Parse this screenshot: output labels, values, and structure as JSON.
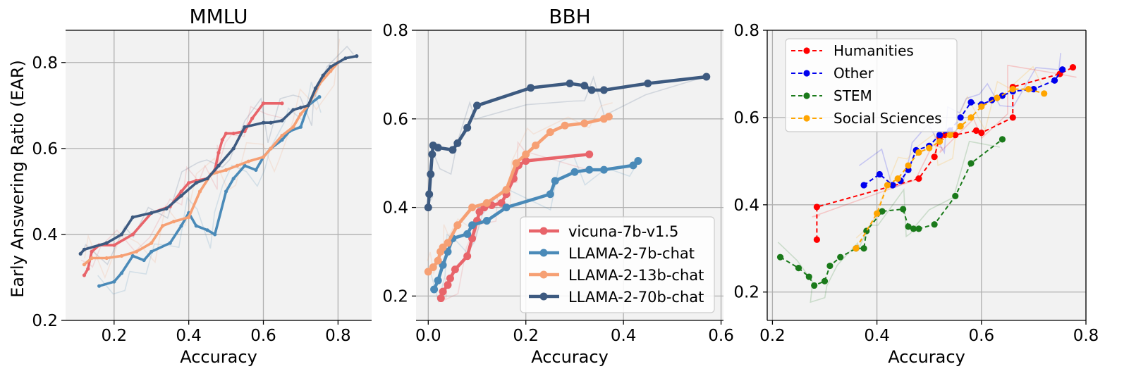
{
  "chart_data": [
    {
      "type": "line",
      "title": "MMLU",
      "xlabel": "Accuracy",
      "ylabel": "Early Answering Ratio (EAR)",
      "xlim": [
        0.07,
        0.89
      ],
      "ylim": [
        0.2,
        0.875
      ],
      "xticks": [
        0.2,
        0.4,
        0.6,
        0.8
      ],
      "xtick_labels": [
        "0.2",
        "0.4",
        "0.6",
        "0.8"
      ],
      "yticks": [
        0.2,
        0.4,
        0.6,
        0.8
      ],
      "ytick_labels": [
        "0.2",
        "0.4",
        "0.6",
        "0.8"
      ],
      "series": [
        {
          "name": "vicuna-7b-v1.5",
          "color": "#e8646a",
          "x": [
            0.12,
            0.13,
            0.14,
            0.16,
            0.2,
            0.25,
            0.3,
            0.35,
            0.38,
            0.4,
            0.42,
            0.45,
            0.47,
            0.48,
            0.49,
            0.5,
            0.52,
            0.55,
            0.57,
            0.6,
            0.65
          ],
          "y": [
            0.305,
            0.32,
            0.36,
            0.375,
            0.375,
            0.4,
            0.45,
            0.465,
            0.5,
            0.52,
            0.525,
            0.53,
            0.55,
            0.59,
            0.62,
            0.635,
            0.635,
            0.64,
            0.67,
            0.705,
            0.705
          ]
        },
        {
          "name": "LLAMA-2-7b-chat",
          "color": "#4a8ab8",
          "x": [
            0.16,
            0.2,
            0.22,
            0.25,
            0.28,
            0.3,
            0.35,
            0.38,
            0.4,
            0.42,
            0.45,
            0.47,
            0.5,
            0.52,
            0.55,
            0.58,
            0.6,
            0.62,
            0.65,
            0.67,
            0.7,
            0.72,
            0.75
          ],
          "y": [
            0.28,
            0.29,
            0.31,
            0.35,
            0.34,
            0.36,
            0.38,
            0.42,
            0.45,
            0.42,
            0.41,
            0.4,
            0.5,
            0.53,
            0.56,
            0.55,
            0.58,
            0.6,
            0.62,
            0.64,
            0.65,
            0.7,
            0.72
          ]
        },
        {
          "name": "LLAMA-2-13b-chat",
          "color": "#f6a074",
          "x": [
            0.12,
            0.14,
            0.18,
            0.22,
            0.26,
            0.3,
            0.33,
            0.36,
            0.4,
            0.43,
            0.46,
            0.5,
            0.53,
            0.56,
            0.6,
            0.62,
            0.65,
            0.68,
            0.7,
            0.72,
            0.75,
            0.78,
            0.8
          ],
          "y": [
            0.33,
            0.345,
            0.345,
            0.35,
            0.36,
            0.38,
            0.42,
            0.43,
            0.44,
            0.5,
            0.54,
            0.55,
            0.56,
            0.57,
            0.58,
            0.6,
            0.63,
            0.65,
            0.68,
            0.7,
            0.75,
            0.78,
            0.8
          ]
        },
        {
          "name": "LLAMA-2-70b-chat",
          "color": "#3d5a80",
          "x": [
            0.11,
            0.12,
            0.18,
            0.22,
            0.25,
            0.3,
            0.34,
            0.38,
            0.42,
            0.45,
            0.48,
            0.52,
            0.55,
            0.6,
            0.62,
            0.65,
            0.68,
            0.7,
            0.72,
            0.74,
            0.76,
            0.78,
            0.82,
            0.85
          ],
          "y": [
            0.355,
            0.365,
            0.38,
            0.4,
            0.44,
            0.45,
            0.46,
            0.49,
            0.52,
            0.53,
            0.56,
            0.6,
            0.65,
            0.66,
            0.66,
            0.665,
            0.69,
            0.695,
            0.7,
            0.74,
            0.77,
            0.79,
            0.81,
            0.815
          ]
        }
      ]
    },
    {
      "type": "line",
      "title": "BBH",
      "xlabel": "Accuracy",
      "ylabel": "",
      "xlim": [
        -0.025,
        0.605
      ],
      "ylim": [
        0.145,
        0.8
      ],
      "xticks": [
        0.0,
        0.2,
        0.4,
        0.6
      ],
      "xtick_labels": [
        "0.0",
        "0.2",
        "0.4",
        "0.6"
      ],
      "yticks": [
        0.2,
        0.4,
        0.6,
        0.8
      ],
      "ytick_labels": [
        "0.2",
        "0.4",
        "0.6",
        "0.8"
      ],
      "legend": "lower-right",
      "series": [
        {
          "name": "vicuna-7b-v1.5",
          "color": "#e8646a",
          "x": [
            0.026,
            0.03,
            0.04,
            0.045,
            0.055,
            0.08,
            0.09,
            0.1,
            0.105,
            0.115,
            0.13,
            0.15,
            0.16,
            0.175,
            0.185,
            0.2,
            0.33
          ],
          "y": [
            0.195,
            0.21,
            0.225,
            0.24,
            0.26,
            0.29,
            0.33,
            0.37,
            0.39,
            0.4,
            0.405,
            0.41,
            0.43,
            0.465,
            0.495,
            0.505,
            0.52
          ]
        },
        {
          "name": "LLAMA-2-7b-chat",
          "color": "#4a8ab8",
          "x": [
            0.012,
            0.02,
            0.03,
            0.04,
            0.05,
            0.08,
            0.09,
            0.12,
            0.16,
            0.25,
            0.26,
            0.3,
            0.33,
            0.36,
            0.42,
            0.43
          ],
          "y": [
            0.215,
            0.235,
            0.27,
            0.3,
            0.33,
            0.34,
            0.36,
            0.37,
            0.4,
            0.43,
            0.46,
            0.48,
            0.485,
            0.485,
            0.495,
            0.505
          ]
        },
        {
          "name": "LLAMA-2-13b-chat",
          "color": "#f6a074",
          "x": [
            0.0,
            0.01,
            0.02,
            0.025,
            0.03,
            0.04,
            0.06,
            0.09,
            0.12,
            0.16,
            0.18,
            0.2,
            0.22,
            0.25,
            0.28,
            0.32,
            0.36,
            0.37
          ],
          "y": [
            0.255,
            0.265,
            0.28,
            0.3,
            0.31,
            0.32,
            0.36,
            0.4,
            0.41,
            0.44,
            0.5,
            0.52,
            0.54,
            0.57,
            0.585,
            0.59,
            0.6,
            0.605
          ]
        },
        {
          "name": "LLAMA-2-70b-chat",
          "color": "#3d5a80",
          "x": [
            0.0,
            0.002,
            0.005,
            0.008,
            0.01,
            0.02,
            0.05,
            0.06,
            0.08,
            0.1,
            0.21,
            0.29,
            0.32,
            0.335,
            0.36,
            0.45,
            0.57
          ],
          "y": [
            0.4,
            0.43,
            0.475,
            0.52,
            0.54,
            0.535,
            0.53,
            0.545,
            0.58,
            0.63,
            0.67,
            0.68,
            0.675,
            0.665,
            0.665,
            0.68,
            0.695
          ]
        }
      ]
    },
    {
      "type": "line",
      "title": "",
      "xlabel": "Accuracy",
      "ylabel": "",
      "xlim": [
        0.19,
        0.8
      ],
      "ylim": [
        0.135,
        0.8
      ],
      "xticks": [
        0.2,
        0.4,
        0.6,
        0.8
      ],
      "xtick_labels": [
        "0.2",
        "0.4",
        "0.6",
        "0.8"
      ],
      "yticks": [
        0.2,
        0.4,
        0.6,
        0.8
      ],
      "ytick_labels": [
        "0.2",
        "0.4",
        "0.6",
        "0.8"
      ],
      "legend": "upper-left",
      "series": [
        {
          "name": "Humanities",
          "color": "#ff0000",
          "x": [
            0.285,
            0.285,
            0.48,
            0.51,
            0.52,
            0.53,
            0.55,
            0.59,
            0.6,
            0.66,
            0.66,
            0.75,
            0.775
          ],
          "y": [
            0.32,
            0.395,
            0.46,
            0.51,
            0.555,
            0.56,
            0.56,
            0.57,
            0.565,
            0.6,
            0.67,
            0.7,
            0.715
          ]
        },
        {
          "name": "Other",
          "color": "#0000ee",
          "x": [
            0.375,
            0.405,
            0.43,
            0.445,
            0.46,
            0.475,
            0.5,
            0.52,
            0.54,
            0.56,
            0.58,
            0.6,
            0.62,
            0.64,
            0.66,
            0.7,
            0.74,
            0.755
          ],
          "y": [
            0.445,
            0.47,
            0.445,
            0.455,
            0.48,
            0.525,
            0.535,
            0.56,
            0.57,
            0.6,
            0.635,
            0.63,
            0.64,
            0.65,
            0.66,
            0.665,
            0.685,
            0.71
          ]
        },
        {
          "name": "STEM",
          "color": "#1a7a1a",
          "x": [
            0.215,
            0.25,
            0.27,
            0.28,
            0.3,
            0.31,
            0.33,
            0.36,
            0.375,
            0.38,
            0.41,
            0.45,
            0.46,
            0.47,
            0.48,
            0.51,
            0.55,
            0.58,
            0.64
          ],
          "y": [
            0.28,
            0.255,
            0.235,
            0.215,
            0.225,
            0.26,
            0.28,
            0.3,
            0.3,
            0.34,
            0.385,
            0.39,
            0.35,
            0.345,
            0.345,
            0.355,
            0.42,
            0.495,
            0.55
          ]
        },
        {
          "name": "Social Sciences",
          "color": "#ffa500",
          "x": [
            0.36,
            0.4,
            0.42,
            0.44,
            0.46,
            0.48,
            0.5,
            0.52,
            0.54,
            0.56,
            0.58,
            0.6,
            0.63,
            0.66,
            0.69,
            0.72
          ],
          "y": [
            0.3,
            0.38,
            0.445,
            0.46,
            0.49,
            0.52,
            0.53,
            0.545,
            0.56,
            0.58,
            0.6,
            0.625,
            0.645,
            0.665,
            0.665,
            0.655
          ]
        }
      ]
    }
  ]
}
